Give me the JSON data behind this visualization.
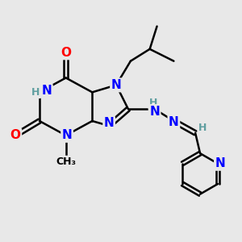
{
  "background_color": "#e8e8e8",
  "bond_color": "#000000",
  "atom_colors": {
    "N": "#0000ff",
    "O": "#ff0000",
    "C": "#000000",
    "H": "#5f9ea0"
  },
  "title": "",
  "figsize": [
    3.0,
    3.0
  ],
  "dpi": 100
}
